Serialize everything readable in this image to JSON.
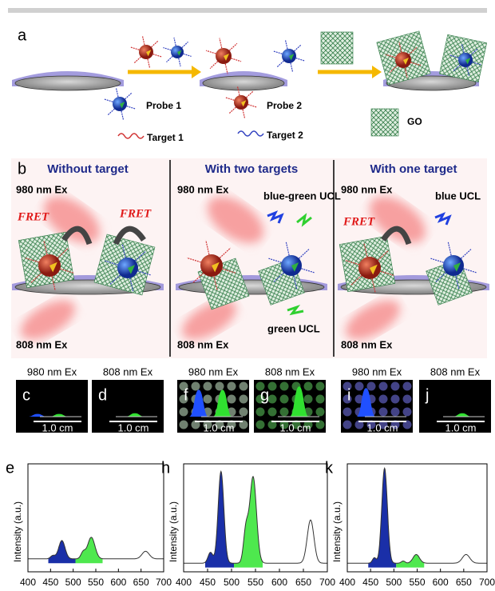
{
  "panel_a": {
    "label": "a",
    "legend": [
      "Probe 1",
      "Probe 2",
      "Target 1",
      "Target 2",
      "GO"
    ]
  },
  "panel_b": {
    "label": "b",
    "columns": [
      {
        "title": "Without target",
        "top_ex": "980 nm Ex",
        "bottom_ex": "808 nm Ex",
        "fret": [
          "FRET",
          "FRET"
        ]
      },
      {
        "title": "With two targets",
        "top_ex": "980 nm Ex",
        "bottom_ex": "808 nm Ex",
        "emission": [
          "blue-green UCL",
          "green  UCL"
        ]
      },
      {
        "title": "With one target",
        "top_ex": "980 nm Ex",
        "bottom_ex": "808 nm Ex",
        "fret": [
          "FRET"
        ],
        "emission": [
          "blue UCL"
        ]
      }
    ]
  },
  "photos": [
    {
      "label": "c",
      "header": "980 nm Ex",
      "scale": "1.0 cm"
    },
    {
      "label": "d",
      "header": "808 nm Ex",
      "scale": "1.0 cm"
    },
    {
      "label": "f",
      "header": "980 nm Ex",
      "scale": "1.0 cm"
    },
    {
      "label": "g",
      "header": "808 nm Ex",
      "scale": "1.0 cm"
    },
    {
      "label": "i",
      "header": "980 nm Ex",
      "scale": "1.0 cm"
    },
    {
      "label": "j",
      "header": "808 nm Ex",
      "scale": "1.0 cm"
    }
  ],
  "spectra": [
    {
      "label": "e",
      "ylabel": "Intensity (a.u.)",
      "xticks": [
        400,
        450,
        500,
        550,
        600,
        650,
        700
      ]
    },
    {
      "label": "h",
      "ylabel": "Intensity (a.u.)",
      "xticks": [
        400,
        450,
        500,
        550,
        600,
        650,
        700
      ]
    },
    {
      "label": "k",
      "ylabel": "Intensity (a.u.)",
      "xticks": [
        400,
        450,
        500,
        550,
        600,
        650,
        700
      ]
    }
  ]
}
